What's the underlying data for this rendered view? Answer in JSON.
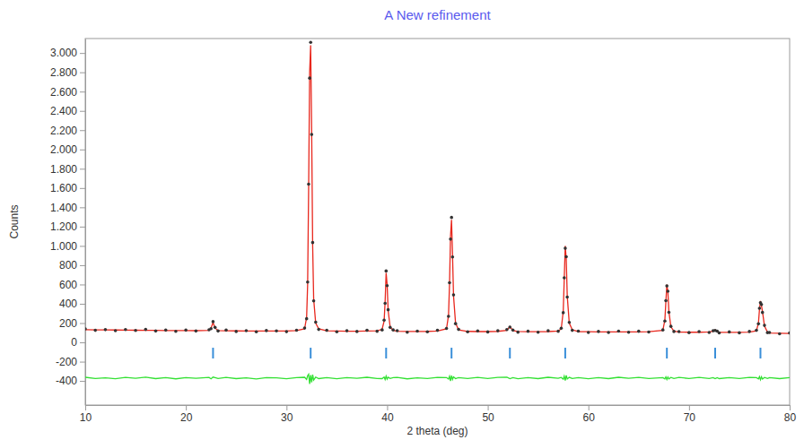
{
  "chart_data": {
    "type": "line",
    "title": "A New refinement",
    "x_label": "2 theta (deg)",
    "y_label": "Counts",
    "xlim": [
      10,
      80
    ],
    "ylim": [
      -650,
      3150
    ],
    "xticks": [
      10,
      20,
      30,
      40,
      50,
      60,
      70,
      80
    ],
    "yticks": [
      {
        "value": 3000,
        "label": "3.000"
      },
      {
        "value": 2800,
        "label": "2.800"
      },
      {
        "value": 2600,
        "label": "2.600"
      },
      {
        "value": 2400,
        "label": "2.400"
      },
      {
        "value": 2200,
        "label": "2.200"
      },
      {
        "value": 2000,
        "label": "2.000"
      },
      {
        "value": 1800,
        "label": "1.800"
      },
      {
        "value": 1600,
        "label": "1.600"
      },
      {
        "value": 1400,
        "label": "1.400"
      },
      {
        "value": 1200,
        "label": "1.200"
      },
      {
        "value": 1000,
        "label": "1.000"
      },
      800,
      600,
      400,
      200,
      0,
      -200,
      -400
    ],
    "grid": false,
    "x": [
      10,
      11,
      12,
      13,
      14,
      15,
      16,
      17,
      18,
      19,
      20,
      21,
      22.3,
      22.5,
      22.7,
      22.9,
      23.2,
      24,
      25,
      26,
      27,
      28,
      29,
      30,
      31,
      31.8,
      32.0,
      32.1,
      32.2,
      32.3,
      32.4,
      32.5,
      32.6,
      32.7,
      32.9,
      33.2,
      34,
      35,
      36,
      37,
      38,
      39,
      39.5,
      39.7,
      39.8,
      39.9,
      40.0,
      40.1,
      40.3,
      40.6,
      41,
      42,
      43,
      44,
      45,
      45.9,
      46.1,
      46.2,
      46.3,
      46.4,
      46.5,
      46.6,
      46.8,
      47.1,
      48,
      49,
      50,
      51,
      51.9,
      52.2,
      52.5,
      53,
      54,
      55,
      56,
      57,
      57.3,
      57.5,
      57.6,
      57.7,
      57.8,
      57.9,
      58.1,
      58.4,
      59,
      60,
      61,
      62,
      63,
      64,
      65,
      66,
      67.4,
      67.6,
      67.7,
      67.8,
      67.9,
      68.0,
      68.2,
      68.5,
      69,
      70,
      71,
      72,
      72.4,
      72.6,
      72.8,
      73,
      74,
      75,
      76,
      76.7,
      76.9,
      77.0,
      77.1,
      77.2,
      77.3,
      77.5,
      77.8,
      78,
      79,
      80
    ],
    "series": [
      {
        "type": "scatter",
        "marker": "circle",
        "color": "#333333",
        "values": [
          140,
          125,
          132,
          121,
          133,
          124,
          134,
          118,
          127,
          114,
          127,
          118,
          131,
          142,
          215,
          155,
          118,
          127,
          113,
          121,
          109,
          122,
          119,
          111,
          126,
          148,
          245,
          625,
          1640,
          2740,
          3110,
          2155,
          1035,
          430,
          210,
          134,
          125,
          110,
          120,
          113,
          125,
          115,
          129,
          230,
          405,
          740,
          588,
          338,
          155,
          129,
          121,
          105,
          116,
          109,
          125,
          145,
          270,
          618,
          1070,
          1295,
          885,
          492,
          194,
          134,
          109,
          119,
          108,
          120,
          133,
          159,
          127,
          106,
          115,
          105,
          120,
          115,
          146,
          308,
          670,
          975,
          888,
          470,
          207,
          125,
          117,
          103,
          113,
          102,
          116,
          105,
          115,
          107,
          129,
          221,
          432,
          585,
          530,
          312,
          166,
          113,
          112,
          101,
          112,
          103,
          120,
          123,
          117,
          98,
          108,
          99,
          113,
          125,
          192,
          354,
          412,
          392,
          310,
          176,
          101,
          102,
          89,
          97
        ]
      },
      {
        "type": "line",
        "line_style": "solid",
        "color": "#e8281e",
        "values": [
          132,
          130,
          129,
          128,
          127,
          126,
          125,
          124,
          123,
          122,
          122,
          121,
          125,
          150,
          205,
          150,
          122,
          120,
          119,
          118,
          118,
          117,
          117,
          118,
          122,
          140,
          260,
          600,
          1600,
          2800,
          3080,
          2200,
          1000,
          450,
          200,
          140,
          120,
          117,
          116,
          116,
          117,
          120,
          135,
          220,
          420,
          720,
          600,
          330,
          160,
          125,
          115,
          113,
          113,
          114,
          118,
          140,
          280,
          600,
          1100,
          1270,
          900,
          480,
          200,
          130,
          114,
          112,
          112,
          114,
          125,
          165,
          122,
          113,
          111,
          111,
          112,
          118,
          140,
          320,
          650,
          1000,
          860,
          480,
          200,
          130,
          112,
          110,
          109,
          108,
          108,
          108,
          109,
          111,
          125,
          230,
          420,
          600,
          520,
          320,
          160,
          118,
          106,
          105,
          105,
          108,
          115,
          130,
          113,
          104,
          103,
          103,
          106,
          120,
          200,
          340,
          430,
          380,
          320,
          170,
          105,
          97,
          95,
          93
        ]
      },
      {
        "type": "line",
        "line_style": "solid",
        "color": "#33e033",
        "values": [
          -362,
          -375,
          -367,
          -377,
          -364,
          -372,
          -361,
          -376,
          -366,
          -378,
          -365,
          -373,
          -364,
          -378,
          -360,
          -365,
          -374,
          -363,
          -376,
          -367,
          -379,
          -365,
          -368,
          -377,
          -366,
          -362,
          -385,
          -345,
          -330,
          -430,
          -340,
          -415,
          -335,
          -390,
          -360,
          -376,
          -365,
          -377,
          -366,
          -373,
          -362,
          -375,
          -376,
          -360,
          -385,
          -350,
          -382,
          -362,
          -375,
          -366,
          -364,
          -378,
          -367,
          -375,
          -363,
          -365,
          -380,
          -352,
          -400,
          -345,
          -385,
          -358,
          -376,
          -366,
          -375,
          -363,
          -374,
          -364,
          -362,
          -376,
          -365,
          -377,
          -366,
          -376,
          -362,
          -373,
          -364,
          -382,
          -350,
          -395,
          -342,
          -380,
          -363,
          -375,
          -365,
          -377,
          -366,
          -376,
          -362,
          -373,
          -364,
          -374,
          -366,
          -379,
          -358,
          -385,
          -360,
          -378,
          -364,
          -375,
          -364,
          -374,
          -363,
          -375,
          -365,
          -377,
          -366,
          -376,
          -365,
          -374,
          -363,
          -365,
          -378,
          -356,
          -388,
          -358,
          -380,
          -364,
          -374,
          -365,
          -376,
          -366
        ]
      }
    ],
    "reflections": {
      "color": "#3a8fd9",
      "marker": "tick",
      "x": [
        22.7,
        32.4,
        39.9,
        46.4,
        52.2,
        57.7,
        67.8,
        72.6,
        77.1
      ]
    }
  }
}
